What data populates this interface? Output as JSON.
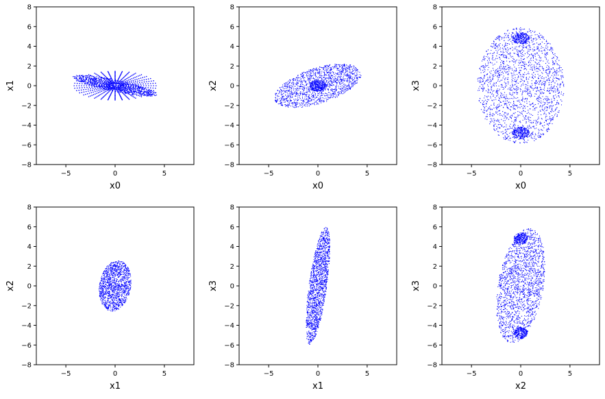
{
  "chart_data": [
    {
      "type": "scatter",
      "xlabel": "x0",
      "ylabel": "x1",
      "xlim": [
        -8,
        8
      ],
      "ylim": [
        -8,
        8
      ],
      "xticks": [
        -5,
        0,
        5
      ],
      "yticks": [
        -8,
        -6,
        -4,
        -2,
        0,
        2,
        4,
        6,
        8
      ],
      "color": "#0000ff",
      "points_note": "dense blue dots forming a thin rotated ellipse with radial spokes centered at origin",
      "clusters": [
        {
          "shape": "ellipse",
          "cx": 0,
          "cy": 0,
          "rx": 4.4,
          "ry": 0.6,
          "angle_deg": -12,
          "count": 900
        },
        {
          "shape": "spokes",
          "cx": 0,
          "cy": 0,
          "length": 4.2,
          "count": 36
        }
      ]
    },
    {
      "type": "scatter",
      "xlabel": "x0",
      "ylabel": "x2",
      "xlim": [
        -8,
        8
      ],
      "ylim": [
        -8,
        8
      ],
      "xticks": [
        -5,
        0,
        5
      ],
      "yticks": [
        -8,
        -6,
        -4,
        -2,
        0,
        2,
        4,
        6,
        8
      ],
      "color": "#0000ff",
      "clusters": [
        {
          "shape": "ellipse",
          "cx": 0,
          "cy": 0,
          "rx": 4.6,
          "ry": 1.8,
          "angle_deg": 18,
          "count": 1400
        },
        {
          "shape": "ellipse",
          "cx": 0,
          "cy": 0,
          "rx": 0.8,
          "ry": 0.6,
          "angle_deg": 0,
          "count": 300
        }
      ]
    },
    {
      "type": "scatter",
      "xlabel": "x0",
      "ylabel": "x3",
      "xlim": [
        -8,
        8
      ],
      "ylim": [
        -8,
        8
      ],
      "xticks": [
        -5,
        0,
        5
      ],
      "yticks": [
        -8,
        -6,
        -4,
        -2,
        0,
        2,
        4,
        6,
        8
      ],
      "color": "#0000ff",
      "clusters": [
        {
          "shape": "ellipse",
          "cx": 0,
          "cy": 0,
          "rx": 4.4,
          "ry": 5.9,
          "angle_deg": 0,
          "count": 2000
        },
        {
          "shape": "ellipse",
          "cx": 0,
          "cy": 4.8,
          "rx": 0.9,
          "ry": 0.6,
          "angle_deg": 0,
          "count": 250
        },
        {
          "shape": "ellipse",
          "cx": 0,
          "cy": -4.8,
          "rx": 0.9,
          "ry": 0.6,
          "angle_deg": 0,
          "count": 250
        }
      ]
    },
    {
      "type": "scatter",
      "xlabel": "x1",
      "ylabel": "x2",
      "xlim": [
        -8,
        8
      ],
      "ylim": [
        -8,
        8
      ],
      "xticks": [
        -5,
        0,
        5
      ],
      "yticks": [
        -8,
        -6,
        -4,
        -2,
        0,
        2,
        4,
        6,
        8
      ],
      "color": "#0000ff",
      "clusters": [
        {
          "shape": "ellipse",
          "cx": 0,
          "cy": 0,
          "rx": 1.6,
          "ry": 2.6,
          "angle_deg": -10,
          "count": 1300
        }
      ]
    },
    {
      "type": "scatter",
      "xlabel": "x1",
      "ylabel": "x3",
      "xlim": [
        -8,
        8
      ],
      "ylim": [
        -8,
        8
      ],
      "xticks": [
        -5,
        0,
        5
      ],
      "yticks": [
        -8,
        -6,
        -4,
        -2,
        0,
        2,
        4,
        6,
        8
      ],
      "color": "#0000ff",
      "clusters": [
        {
          "shape": "ellipse",
          "cx": 0,
          "cy": 0,
          "rx": 0.9,
          "ry": 6.0,
          "angle_deg": -8,
          "count": 1600
        }
      ]
    },
    {
      "type": "scatter",
      "xlabel": "x2",
      "ylabel": "x3",
      "xlim": [
        -8,
        8
      ],
      "ylim": [
        -8,
        8
      ],
      "xticks": [
        -5,
        0,
        5
      ],
      "yticks": [
        -8,
        -6,
        -4,
        -2,
        0,
        2,
        4,
        6,
        8
      ],
      "color": "#0000ff",
      "clusters": [
        {
          "shape": "ellipse",
          "cx": 0,
          "cy": 0,
          "rx": 2.3,
          "ry": 5.9,
          "angle_deg": -10,
          "count": 1800
        },
        {
          "shape": "ellipse",
          "cx": 0,
          "cy": 4.8,
          "rx": 0.7,
          "ry": 0.6,
          "angle_deg": 0,
          "count": 220
        },
        {
          "shape": "ellipse",
          "cx": 0,
          "cy": -4.8,
          "rx": 0.7,
          "ry": 0.6,
          "angle_deg": 0,
          "count": 220
        }
      ]
    }
  ]
}
